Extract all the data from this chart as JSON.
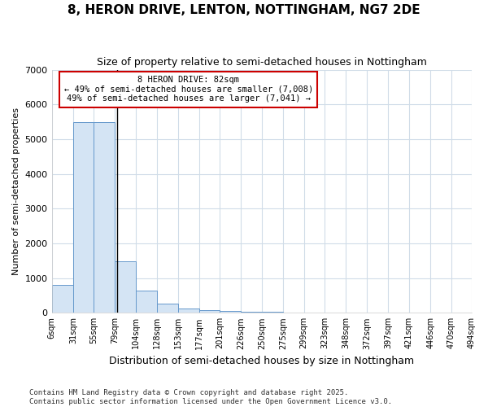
{
  "title1": "8, HERON DRIVE, LENTON, NOTTINGHAM, NG7 2DE",
  "title2": "Size of property relative to semi-detached houses in Nottingham",
  "xlabel": "Distribution of semi-detached houses by size in Nottingham",
  "ylabel": "Number of semi-detached properties",
  "bin_edges": [
    6,
    31,
    55,
    79,
    104,
    128,
    153,
    177,
    201,
    226,
    250,
    275,
    299,
    323,
    348,
    372,
    397,
    421,
    446,
    470,
    494
  ],
  "bar_heights": [
    800,
    5500,
    5500,
    1480,
    650,
    265,
    115,
    75,
    55,
    35,
    40,
    0,
    0,
    0,
    0,
    0,
    0,
    0,
    0,
    0
  ],
  "bar_color": "#d4e4f4",
  "bar_edge_color": "#6699cc",
  "property_size": 82,
  "property_label": "8 HERON DRIVE: 82sqm",
  "pct_smaller": 49,
  "pct_smaller_count": "7,008",
  "pct_larger": 49,
  "pct_larger_count": "7,041",
  "annotation_box_color": "#ffffff",
  "annotation_box_edge": "#cc0000",
  "vline_color": "#000000",
  "ylim": [
    0,
    7000
  ],
  "yticks": [
    0,
    1000,
    2000,
    3000,
    4000,
    5000,
    6000,
    7000
  ],
  "background_color": "#ffffff",
  "grid_color": "#d0dce8",
  "footer1": "Contains HM Land Registry data © Crown copyright and database right 2025.",
  "footer2": "Contains public sector information licensed under the Open Government Licence v3.0."
}
